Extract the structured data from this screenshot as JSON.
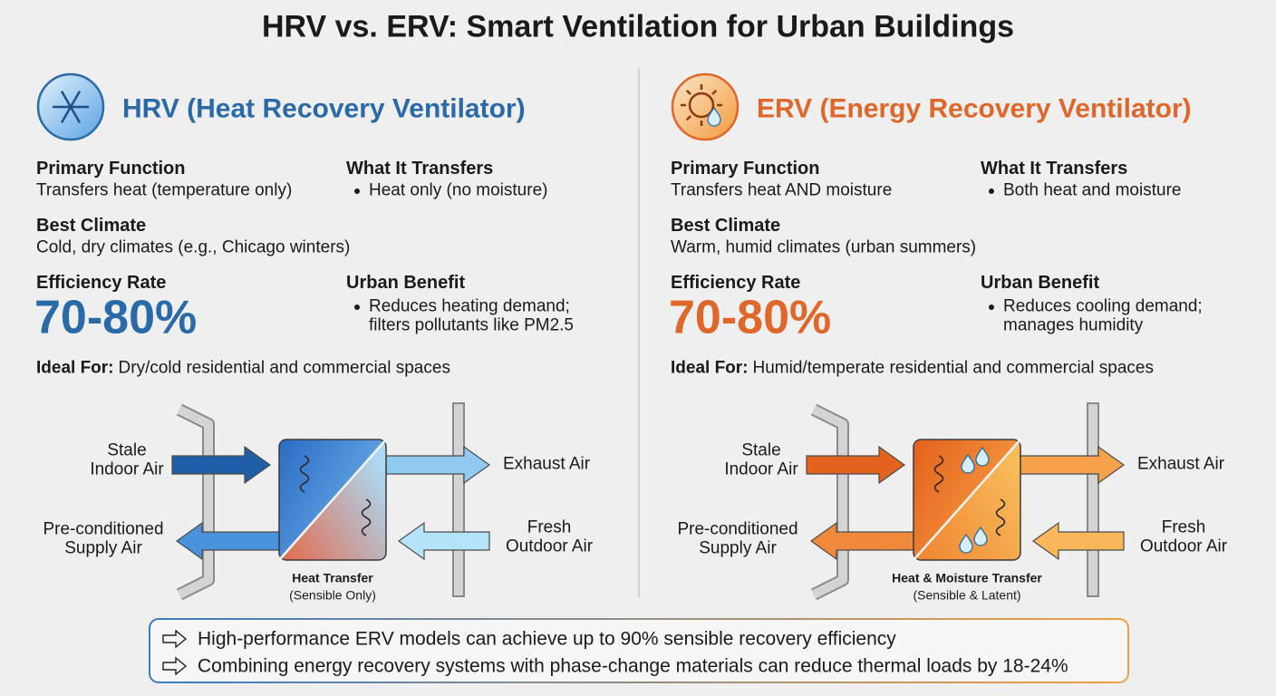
{
  "title": "HRV vs. ERV: Smart Ventilation for Urban Buildings",
  "panels": [
    {
      "heading": "HRV (Heat Recovery Ventilator)",
      "color": "#2a6aa8",
      "primary_function": {
        "label": "Primary Function",
        "text": "Transfers heat (temperature only)"
      },
      "transfers": {
        "label": "What It Transfers",
        "items": [
          "Heat only (no moisture)"
        ]
      },
      "best_climate": {
        "label": "Best Climate",
        "text": "Cold, dry climates (e.g., Chicago winters)"
      },
      "efficiency": {
        "label": "Efficiency Rate",
        "value": "70-80%"
      },
      "urban_benefit": {
        "label": "Urban Benefit",
        "lines": [
          "Reduces heating demand;",
          "filters pollutants like PM2.5"
        ]
      },
      "ideal_for": {
        "label": "Ideal For:",
        "text": "Dry/cold residential and commercial spaces"
      },
      "diagram": {
        "inflow": [
          "Stale",
          "Indoor Air"
        ],
        "exhaust": [
          "Exhaust Air"
        ],
        "supply": [
          "Pre-conditioned",
          "Supply Air"
        ],
        "fresh": [
          "Fresh",
          "Outdoor Air"
        ],
        "core": [
          "Heat Transfer",
          "(Sensible Only)"
        ]
      }
    },
    {
      "heading": "ERV (Energy Recovery Ventilator)",
      "color": "#e0672a",
      "primary_function": {
        "label": "Primary Function",
        "text": "Transfers heat AND moisture"
      },
      "transfers": {
        "label": "What It Transfers",
        "items": [
          "Both heat and moisture"
        ]
      },
      "best_climate": {
        "label": "Best Climate",
        "text": "Warm, humid climates (urban summers)"
      },
      "efficiency": {
        "label": "Efficiency Rate",
        "value": "70-80%"
      },
      "urban_benefit": {
        "label": "Urban Benefit",
        "lines": [
          "Reduces cooling demand;",
          "manages humidity"
        ]
      },
      "ideal_for": {
        "label": "Ideal For:",
        "text": "Humid/temperate residential and commercial spaces"
      },
      "diagram": {
        "inflow": [
          "Stale",
          "Indoor Air"
        ],
        "exhaust": [
          "Exhaust Air"
        ],
        "supply": [
          "Pre-conditioned",
          "Supply Air"
        ],
        "fresh": [
          "Fresh",
          "Outdoor Air"
        ],
        "core": [
          "Heat & Moisture Transfer",
          "(Sensible & Latent)"
        ]
      }
    }
  ],
  "notes": [
    "High-performance ERV models can achieve up to 90% sensible recovery efficiency",
    "Combining energy recovery systems with phase-change materials can reduce thermal loads by 18-24%"
  ]
}
